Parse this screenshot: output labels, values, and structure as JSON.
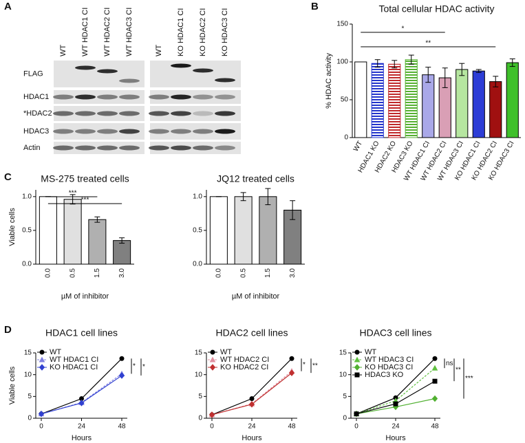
{
  "panel_labels": [
    "A",
    "B",
    "C",
    "D"
  ],
  "blot": {
    "lanes_left": [
      "WT",
      "WT HDAC1 CI",
      "WT HDAC2 CI",
      "WT HDAC3 CI"
    ],
    "lanes_right": [
      "WT",
      "KO HDAC1 CI",
      "KO HDAC2 CI",
      "KO HDAC3 CI"
    ],
    "rows": [
      "FLAG",
      "HDAC1",
      "*HDAC2",
      "HDAC3",
      "Actin"
    ]
  },
  "chart_data": [
    {
      "type": "bar",
      "title": "Total cellular HDAC activity",
      "y_label": "% HDAC activity",
      "categories": [
        "WT",
        "HDAC1 KO",
        "HDAC2 KO",
        "HDAC3 KO",
        "WT HDAC1 CI",
        "WT HDAC2 CI",
        "WT HDAC3 CI",
        "KO HDAC1 CI",
        "KO HDAC2 CI",
        "KO HDAC3 CI"
      ],
      "values": [
        100,
        98,
        97,
        103,
        83,
        79,
        90,
        88,
        74,
        99
      ],
      "errors": [
        0,
        5,
        5,
        6,
        10,
        13,
        8,
        2,
        7,
        5
      ],
      "colors": [
        "#ffffff",
        "#2233cc",
        "#c0282a",
        "#55b030",
        "#a9a8e8",
        "#d99fb5",
        "#b6e6a0",
        "#2d3dd6",
        "#a01010",
        "#3fc02b"
      ],
      "hatched": [
        false,
        true,
        true,
        true,
        false,
        false,
        false,
        false,
        false,
        false
      ],
      "ylim": [
        0,
        150
      ],
      "yticks": [
        0,
        50,
        100,
        150
      ],
      "significance": [
        {
          "from": "WT",
          "to": "WT HDAC2 CI",
          "label": "*"
        },
        {
          "from": "WT",
          "to": "KO HDAC2 CI",
          "label": "**"
        }
      ]
    },
    {
      "type": "bar",
      "title": "MS-275 treated cells",
      "y_label": "Viable cells",
      "x_label": "µM of inhibitor",
      "categories": [
        "0.0",
        "0.5",
        "1.5",
        "3.0"
      ],
      "values": [
        1.0,
        0.96,
        0.66,
        0.35
      ],
      "errors": [
        0,
        0.07,
        0.04,
        0.04
      ],
      "colors": [
        "#ffffff",
        "#e0e0e0",
        "#b0b0b0",
        "#808080"
      ],
      "hatched": [
        false,
        false,
        false,
        false
      ],
      "ylim": [
        0,
        1.1
      ],
      "yticks": [
        {
          "value": 0,
          "label": "0.0"
        },
        0.5,
        {
          "value": 1,
          "label": "1.0"
        }
      ],
      "significance": [
        {
          "from": "0.0",
          "to": "1.5",
          "label": "***"
        },
        {
          "from": "0.0",
          "to": "3.0",
          "label": "***"
        }
      ]
    },
    {
      "type": "bar",
      "title": "JQ12 treated cells",
      "x_label": "µM of inhibitor",
      "categories": [
        "0.0",
        "0.5",
        "1.5",
        "3.0"
      ],
      "values": [
        1.0,
        1.0,
        1.0,
        0.8
      ],
      "errors": [
        0,
        0.06,
        0.12,
        0.14
      ],
      "colors": [
        "#ffffff",
        "#e0e0e0",
        "#b0b0b0",
        "#808080"
      ],
      "hatched": [
        false,
        false,
        false,
        false
      ],
      "ylim": [
        0,
        1.1
      ],
      "yticks": [
        {
          "value": 0,
          "label": "0.0"
        },
        0.5,
        {
          "value": 1,
          "label": "1.0"
        }
      ]
    },
    {
      "type": "line",
      "title": "HDAC1 cell lines",
      "y_label": "Viable cells",
      "x_label": "Hours",
      "x": [
        0,
        24,
        48
      ],
      "xlim": [
        0,
        48
      ],
      "xticks": [
        0,
        24,
        48
      ],
      "ylim": [
        0,
        15
      ],
      "yticks": [
        0,
        5,
        10,
        15
      ],
      "series": [
        {
          "name": "WT",
          "color": "#000000",
          "marker": "circle",
          "dashed": false,
          "values": [
            1,
            4.5,
            13.7
          ]
        },
        {
          "name": "WT HDAC1 CI",
          "color": "#8080e0",
          "marker": "triangle",
          "dashed": true,
          "values": [
            1,
            3.6,
            10.2
          ]
        },
        {
          "name": "KO HDAC1 CI",
          "color": "#3040d0",
          "marker": "diamond",
          "dashed": false,
          "values": [
            1,
            3.5,
            9.8
          ]
        }
      ],
      "significance": [
        {
          "from": "WT",
          "to": "WT HDAC1 CI",
          "label": "*"
        },
        {
          "from": "WT",
          "to": "KO HDAC1 CI",
          "label": "*"
        }
      ]
    },
    {
      "type": "line",
      "title": "HDAC2 cell lines",
      "x_label": "Hours",
      "x": [
        0,
        24,
        48
      ],
      "xlim": [
        0,
        48
      ],
      "xticks": [
        0,
        24,
        48
      ],
      "ylim": [
        0,
        15
      ],
      "yticks": [
        0,
        5,
        10,
        15
      ],
      "series": [
        {
          "name": "WT",
          "color": "#000000",
          "marker": "circle",
          "dashed": false,
          "values": [
            0.8,
            4.5,
            13.7
          ]
        },
        {
          "name": "WT HDAC2 CI",
          "color": "#e090a0",
          "marker": "triangle",
          "dashed": true,
          "values": [
            0.8,
            3.3,
            10.8
          ]
        },
        {
          "name": "KO HDAC2 CI",
          "color": "#c03030",
          "marker": "diamond",
          "dashed": false,
          "values": [
            0.8,
            3.2,
            10.4
          ]
        }
      ],
      "significance": [
        {
          "from": "WT",
          "to": "WT HDAC2 CI",
          "label": "*"
        },
        {
          "from": "WT",
          "to": "KO HDAC2 CI",
          "label": "**"
        }
      ]
    },
    {
      "type": "line",
      "title": "HDAC3 cell lines",
      "x_label": "Hours",
      "x": [
        0,
        24,
        48
      ],
      "xlim": [
        0,
        48
      ],
      "xticks": [
        0,
        24,
        48
      ],
      "ylim": [
        0,
        15
      ],
      "yticks": [
        0,
        5,
        10,
        15
      ],
      "series": [
        {
          "name": "WT",
          "color": "#000000",
          "marker": "circle",
          "dashed": false,
          "values": [
            1,
            4.7,
            13.7
          ]
        },
        {
          "name": "WT HDAC3 CI",
          "color": "#60c040",
          "marker": "triangle",
          "dashed": true,
          "values": [
            1,
            4,
            11.5
          ]
        },
        {
          "name": "KO HDAC3 CI",
          "color": "#50b030",
          "marker": "diamond",
          "dashed": false,
          "values": [
            1,
            2.6,
            4.5
          ]
        },
        {
          "name": "HDAC3 KO",
          "color": "#000000",
          "marker": "square",
          "dashed": false,
          "values": [
            1,
            3.3,
            8.5
          ]
        }
      ],
      "significance": [
        {
          "from": "WT",
          "to": "WT HDAC3 CI",
          "label": "ns"
        },
        {
          "from": "WT",
          "to": "HDAC3 KO",
          "label": "**"
        },
        {
          "from": "WT",
          "to": "KO HDAC3 CI",
          "label": "***"
        }
      ]
    }
  ]
}
